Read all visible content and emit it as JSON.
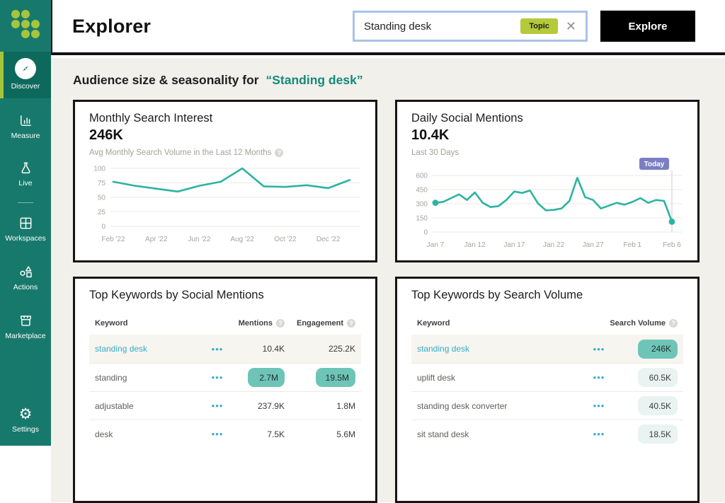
{
  "header": {
    "app_title": "Explorer",
    "search": {
      "value": "Standing desk",
      "tag": "Topic",
      "clear_icon": "✕"
    },
    "explore_button": "Explore"
  },
  "sidebar": {
    "items": [
      {
        "label": "Discover",
        "icon": "compass",
        "active": true
      },
      {
        "label": "Measure",
        "icon": "bar-chart"
      },
      {
        "label": "Live",
        "icon": "flask"
      },
      {
        "label": "Workspaces",
        "icon": "grid"
      },
      {
        "label": "Actions",
        "icon": "shapes"
      },
      {
        "label": "Marketplace",
        "icon": "storefront"
      }
    ],
    "settings": {
      "label": "Settings",
      "icon": "gear",
      "glyph": "⚙"
    }
  },
  "heading": {
    "prefix": "Audience size & seasonality for",
    "query": "“Standing desk”"
  },
  "cards": {
    "search_interest": {
      "title": "Monthly Search Interest",
      "value": "246K",
      "subtitle": "Avg Monthly Search Volume in the Last 12 Months",
      "help_icon": "?"
    },
    "social_mentions": {
      "title": "Daily Social Mentions",
      "value": "10.4K",
      "subtitle": "Last 30 Days",
      "today_label": "Today"
    },
    "keywords_social": {
      "title": "Top Keywords by Social Mentions",
      "col_keyword": "Keyword",
      "col_mentions": "Mentions",
      "col_engagement": "Engagement",
      "help_icon": "?",
      "menu_icon": "•••",
      "rows": [
        {
          "keyword": "standing desk",
          "mentions": "10.4K",
          "engagement": "225.2K"
        },
        {
          "keyword": "standing",
          "mentions": "2.7M",
          "engagement": "19.5M"
        },
        {
          "keyword": "adjustable",
          "mentions": "237.9K",
          "engagement": "1.8M"
        },
        {
          "keyword": "desk",
          "mentions": "7.5K",
          "engagement": "5.6M"
        }
      ]
    },
    "keywords_search": {
      "title": "Top Keywords by Search Volume",
      "col_keyword": "Keyword",
      "col_volume": "Search Volume",
      "help_icon": "?",
      "menu_icon": "•••",
      "rows": [
        {
          "keyword": "standing desk",
          "volume": "246K"
        },
        {
          "keyword": "uplift desk",
          "volume": "60.5K"
        },
        {
          "keyword": "standing desk converter",
          "volume": "40.5K"
        },
        {
          "keyword": "sit stand desk",
          "volume": "18.5K"
        }
      ]
    }
  },
  "chart_data": [
    {
      "type": "line",
      "title": "Monthly Search Interest",
      "headline_value": "246K",
      "x": [
        "Feb '22",
        "Mar '22",
        "Apr '22",
        "May '22",
        "Jun '22",
        "Jul '22",
        "Aug '22",
        "Sep '22",
        "Oct '22",
        "Nov '22",
        "Dec '22",
        "Jan '23"
      ],
      "values": [
        77,
        70,
        65,
        60,
        70,
        77,
        100,
        69,
        68,
        71,
        66,
        80
      ],
      "ylim": [
        0,
        100
      ],
      "yticks": [
        0,
        25,
        50,
        75,
        100
      ],
      "x_tick_idx": [
        0,
        2,
        4,
        6,
        8,
        10
      ],
      "x_tick_labels": [
        "Feb '22",
        "Apr '22",
        "Jun '22",
        "Aug '22",
        "Oct '22",
        "Dec '22"
      ],
      "line_color": "#2db3a2",
      "grid": true,
      "end_dots": false,
      "legend": "none"
    },
    {
      "type": "line",
      "title": "Daily Social Mentions",
      "headline_value": "10.4K",
      "x": [
        "Jan 7",
        "Jan 8",
        "Jan 9",
        "Jan 10",
        "Jan 11",
        "Jan 12",
        "Jan 13",
        "Jan 14",
        "Jan 15",
        "Jan 16",
        "Jan 17",
        "Jan 18",
        "Jan 19",
        "Jan 20",
        "Jan 21",
        "Jan 22",
        "Jan 23",
        "Jan 24",
        "Jan 25",
        "Jan 26",
        "Jan 27",
        "Jan 28",
        "Jan 29",
        "Jan 30",
        "Jan 31",
        "Feb 1",
        "Feb 2",
        "Feb 3",
        "Feb 4",
        "Feb 5",
        "Feb 6"
      ],
      "values": [
        310,
        320,
        360,
        400,
        340,
        420,
        310,
        265,
        275,
        340,
        430,
        415,
        440,
        305,
        230,
        235,
        250,
        330,
        575,
        370,
        340,
        250,
        280,
        310,
        290,
        320,
        360,
        310,
        340,
        330,
        110
      ],
      "ylim": [
        0,
        600
      ],
      "yticks": [
        0,
        150,
        300,
        450,
        600
      ],
      "x_tick_idx": [
        0,
        5,
        10,
        15,
        20,
        25,
        30
      ],
      "x_tick_labels": [
        "Jan 7",
        "Jan 12",
        "Jan 17",
        "Jan 22",
        "Jan 27",
        "Feb 1",
        "Feb 6"
      ],
      "line_color": "#2db3a2",
      "grid": true,
      "end_dots": true,
      "annotation": "Today",
      "annotation_color": "#7a7ec3",
      "legend": "none"
    }
  ],
  "colors": {
    "sidebar": "#17796c",
    "sidebar_active": "#0e695d",
    "accent_green": "#a5c53b",
    "canvas": "#f1f0ea",
    "card_border": "#151515",
    "teal_line": "#2db3a2",
    "heading_teal": "#15897b",
    "keyword_link": "#35aec8",
    "pill_solid": "#6ec5b7",
    "pill_light": "#e9f3f1",
    "today_badge": "#7a7ec3",
    "topic_chip": "#b4ca3b",
    "search_border": "#a9c3e7"
  }
}
